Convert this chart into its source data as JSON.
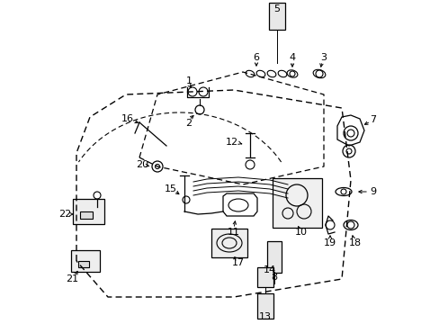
{
  "background_color": "#ffffff",
  "fig_width": 4.89,
  "fig_height": 3.6,
  "dpi": 100,
  "line_color": "#000000",
  "label_color": "#000000"
}
